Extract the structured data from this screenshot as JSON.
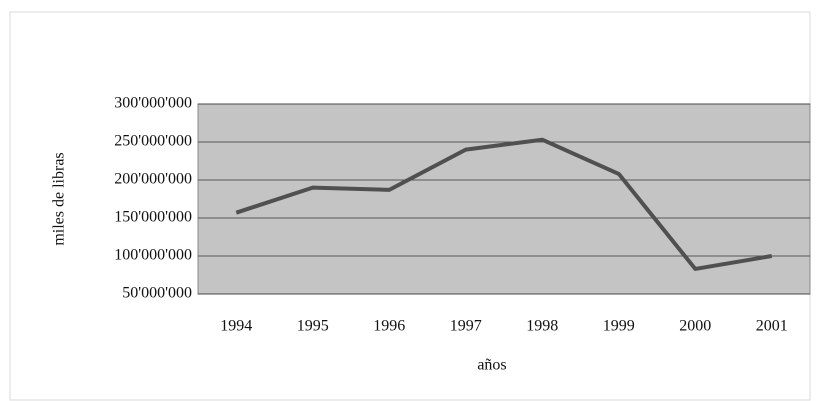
{
  "chart_data": {
    "type": "line",
    "categories": [
      "1994",
      "1995",
      "1996",
      "1997",
      "1998",
      "1999",
      "2000",
      "2001"
    ],
    "series": [
      {
        "color": "#505050",
        "values": [
          157000000,
          190000000,
          187000000,
          240000000,
          253000000,
          208000000,
          83000000,
          100000000
        ]
      }
    ],
    "ylim": [
      50000000,
      300000000
    ],
    "yticks": [
      {
        "value": 50000000,
        "label": "50'000'000"
      },
      {
        "value": 100000000,
        "label": "100'000'000"
      },
      {
        "value": 150000000,
        "label": "150'000'000"
      },
      {
        "value": 200000000,
        "label": "200'000'000"
      },
      {
        "value": 250000000,
        "label": "250'000'000"
      },
      {
        "value": 300000000,
        "label": "300'000'000"
      }
    ],
    "xlabel": "años",
    "ylabel": "miles de libras",
    "grid": true
  }
}
